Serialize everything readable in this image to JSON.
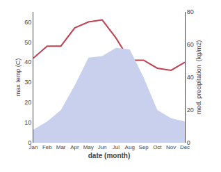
{
  "chart_data": {
    "type": "line",
    "categories": [
      "Jan",
      "Feb",
      "Mar",
      "Apr",
      "May",
      "Jun",
      "Jul",
      "Aug",
      "Sep",
      "Oct",
      "Nov",
      "Dec"
    ],
    "series": [
      {
        "type": "area",
        "axis": "y2",
        "color": "#c8d0ee",
        "values": [
          8,
          13,
          20,
          35,
          52,
          53,
          58,
          57,
          40,
          20,
          15,
          13
        ]
      },
      {
        "type": "line",
        "axis": "y",
        "color": "#c04050",
        "values": [
          42,
          48,
          48,
          57,
          60,
          61,
          52,
          41,
          41,
          37,
          36,
          40
        ]
      }
    ],
    "xlabel": "date (month)",
    "ylabel": "max temp (C)",
    "y2label": "med. precipitation  (kg/m2)",
    "ylim": [
      0,
      65
    ],
    "yticks": [
      0,
      10,
      20,
      30,
      40,
      50,
      60
    ],
    "y2lim": [
      0,
      80
    ],
    "y2ticks": [
      0,
      20,
      40,
      60,
      80
    ],
    "grid": false
  }
}
